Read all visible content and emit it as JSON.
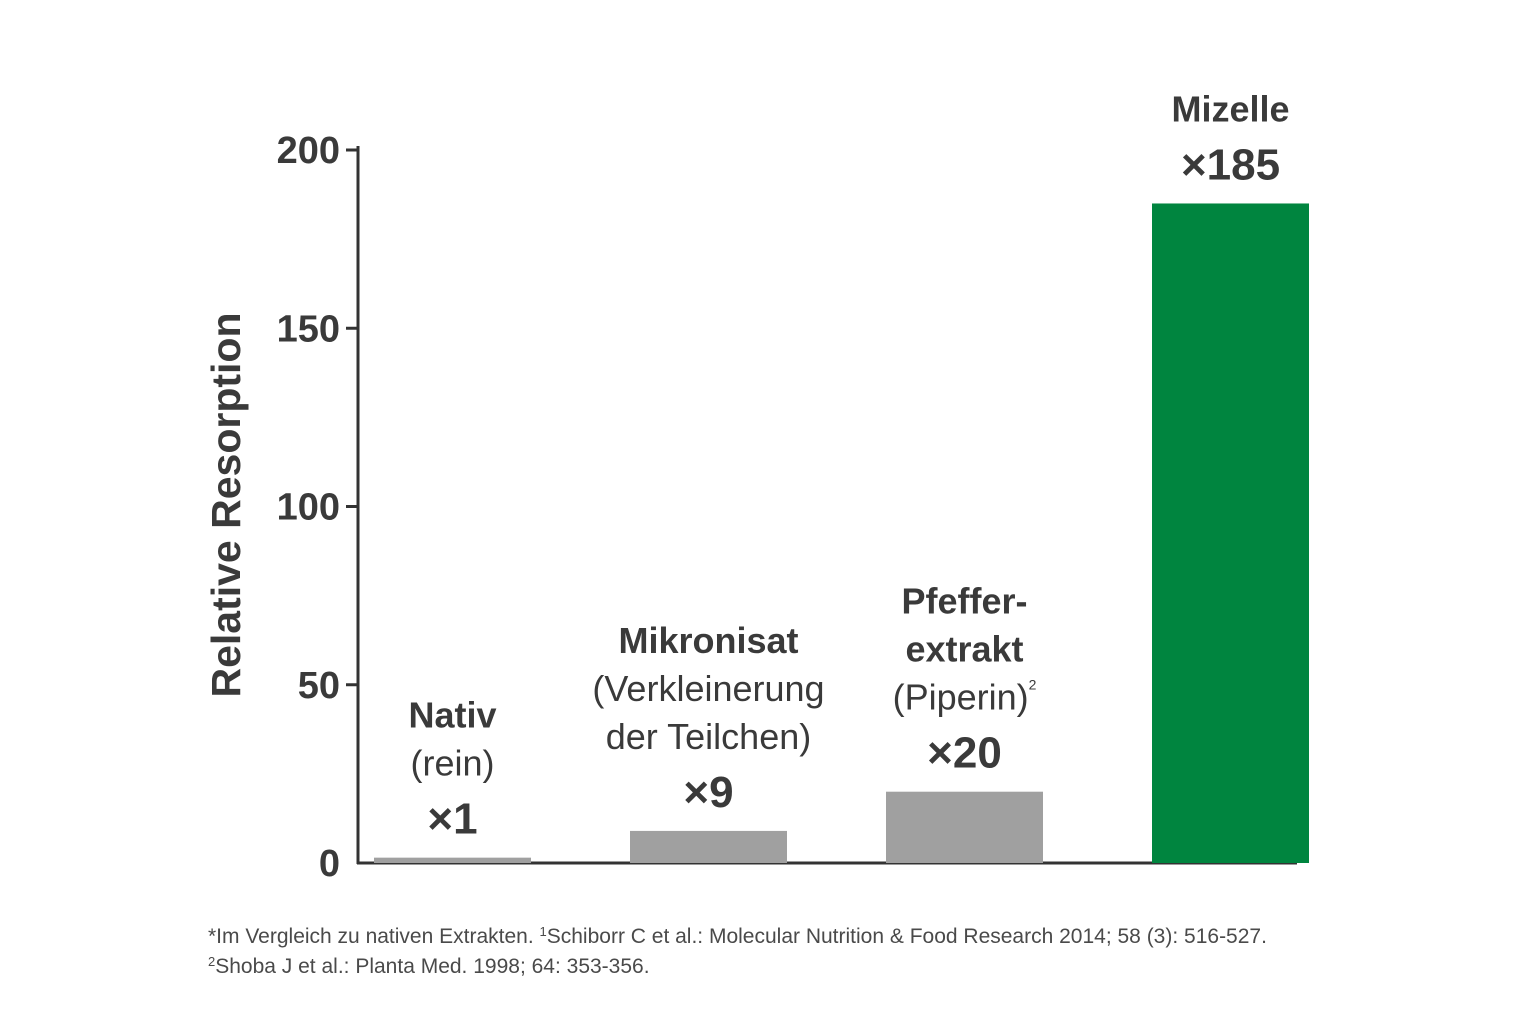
{
  "chart_data": {
    "type": "bar",
    "ylabel": "Relative Resorption",
    "ylim": [
      0,
      200
    ],
    "yticks": [
      "0",
      "50",
      "100",
      "150",
      "200"
    ],
    "grid": false,
    "legend": "none",
    "categories": [
      {
        "name": "Nativ",
        "sub": [
          "(rein)"
        ],
        "sup": "",
        "value": 1,
        "value_label": "×1",
        "color": "#a0a0a0"
      },
      {
        "name": "Mikronisat",
        "sub": [
          "(Verkleinerung",
          "der Teilchen)"
        ],
        "sup": "",
        "value": 9,
        "value_label": "×9",
        "color": "#a0a0a0"
      },
      {
        "name": "Pfeffer-\nextrakt",
        "sub": [
          "(Piperin)"
        ],
        "sup": "2",
        "value": 20,
        "value_label": "×20",
        "color": "#a0a0a0"
      },
      {
        "name": "Mizelle",
        "sub": [],
        "sup": "",
        "value": 185,
        "value_label": "×185",
        "color": "#00853f"
      }
    ]
  },
  "footnote": {
    "part1": "*Im Vergleich zu nativen Extrakten. ",
    "ref1": "1",
    "part2": "Schiborr C et al.: Molecular Nutrition & Food Research 2014; 58 (3): 516-527. ",
    "ref2": "2",
    "part3": "Shoba J et al.: Planta Med. 1998; 64: 353-356."
  }
}
